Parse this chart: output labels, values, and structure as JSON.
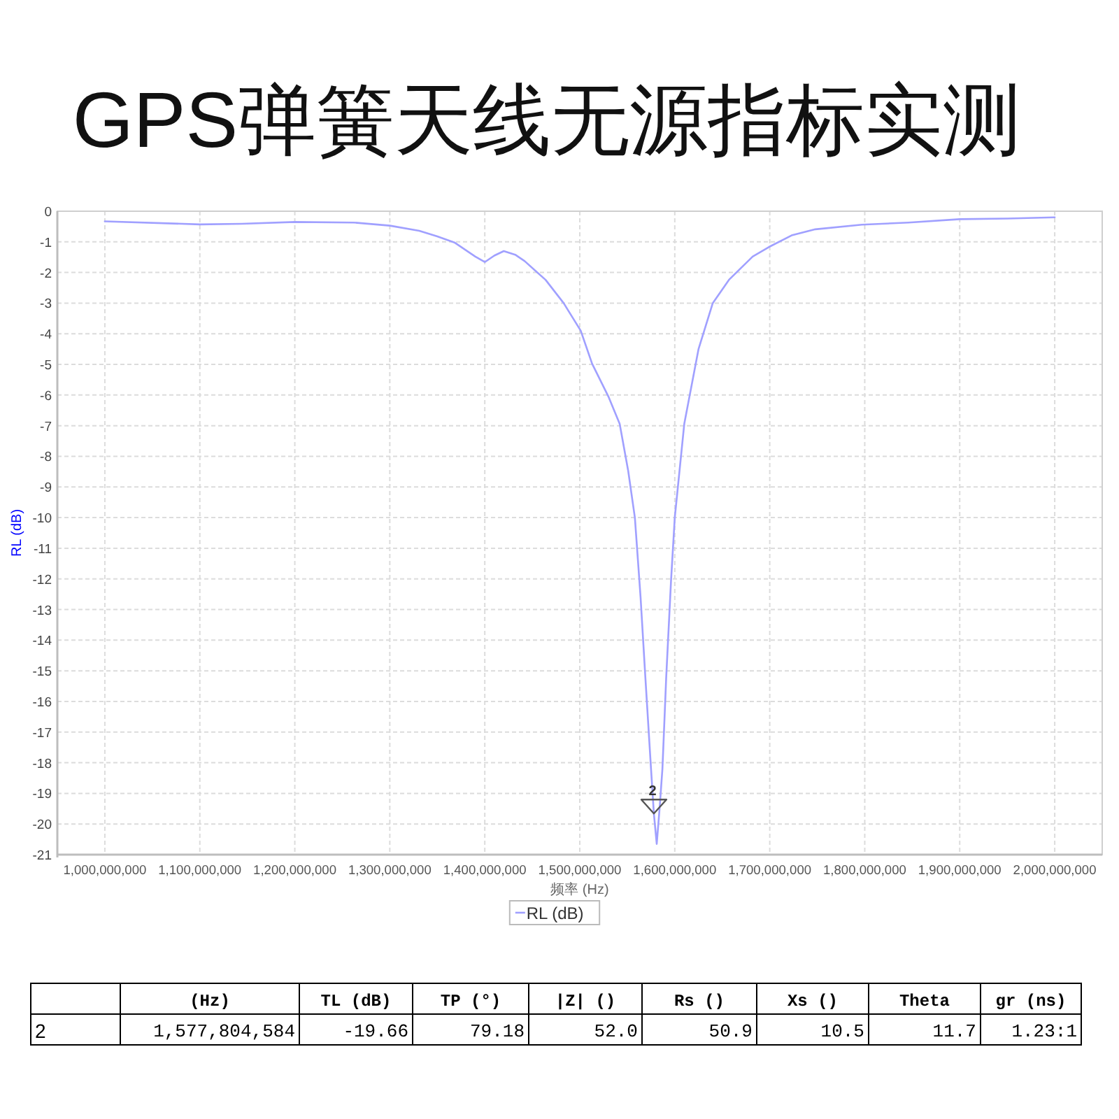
{
  "chart_data": {
    "type": "line",
    "title": "GPS弹簧天线无源指标实测",
    "xlabel": "频率 (Hz)",
    "ylabel": "RL (dB)",
    "xlim": [
      950000000,
      2050000000
    ],
    "ylim": [
      -21,
      0
    ],
    "xticks": [
      {
        "value": 1000000000,
        "label": "1,000,000,000"
      },
      {
        "value": 1100000000,
        "label": "1,100,000,000"
      },
      {
        "value": 1200000000,
        "label": "1,200,000,000"
      },
      {
        "value": 1300000000,
        "label": "1,300,000,000"
      },
      {
        "value": 1400000000,
        "label": "1,400,000,000"
      },
      {
        "value": 1500000000,
        "label": "1,500,000,000"
      },
      {
        "value": 1600000000,
        "label": "1,600,000,000"
      },
      {
        "value": 1700000000,
        "label": "1,700,000,000"
      },
      {
        "value": 1800000000,
        "label": "1,800,000,000"
      },
      {
        "value": 1900000000,
        "label": "1,900,000,000"
      },
      {
        "value": 2000000000,
        "label": "2,000,000,000"
      }
    ],
    "yticks": [
      0,
      -1,
      -2,
      -3,
      -4,
      -5,
      -6,
      -7,
      -8,
      -9,
      -10,
      -11,
      -12,
      -13,
      -14,
      -15,
      -16,
      -17,
      -18,
      -19,
      -20,
      -21
    ],
    "grid": true,
    "legend": "bottom",
    "x": [
      1000000000,
      1100000000,
      1144000000,
      1200000000,
      1262000000,
      1300000000,
      1331000000,
      1350000000,
      1368000000,
      1390000000,
      1400000000,
      1410000000,
      1420000000,
      1432000000,
      1442000000,
      1464000000,
      1483000000,
      1501000000,
      1513000000,
      1530000000,
      1542000000,
      1551000000,
      1558000000,
      1564000000,
      1569000000,
      1575000000,
      1578000000,
      1581000000,
      1584000000,
      1587000000,
      1591000000,
      1596000000,
      1600000000,
      1610000000,
      1625000000,
      1640000000,
      1657000000,
      1682000000,
      1699000000,
      1723000000,
      1748000000,
      1797000000,
      1846000000,
      1900000000,
      1950000000,
      2000000000
    ],
    "series": [
      {
        "name": "RL (dB)",
        "color": "#a0a0ff",
        "values": [
          -0.33,
          -0.43,
          -0.41,
          -0.35,
          -0.37,
          -0.47,
          -0.64,
          -0.82,
          -1.02,
          -1.48,
          -1.66,
          -1.45,
          -1.3,
          -1.42,
          -1.63,
          -2.24,
          -3.0,
          -3.9,
          -4.98,
          -6.04,
          -6.94,
          -8.48,
          -10.0,
          -12.6,
          -15.2,
          -18.2,
          -19.66,
          -20.65,
          -19.5,
          -18.2,
          -15.2,
          -12.1,
          -10.0,
          -6.94,
          -4.5,
          -3.0,
          -2.24,
          -1.48,
          -1.17,
          -0.79,
          -0.59,
          -0.44,
          -0.37,
          -0.26,
          -0.24,
          -0.2
        ]
      }
    ],
    "annotations": [
      {
        "text": "2",
        "y": -19.66
      },
      "(Hz)",
      "TL (dB)",
      "TP (°)",
      "|Z| ()",
      "Rs ()",
      "Xs ()",
      "Theta",
      "gr (ns)",
      "2",
      "1,577,804,584",
      "-19.66",
      "79.18",
      "52.0",
      "50.9",
      "10.5",
      "11.7",
      "1.23:1"
    ]
  }
}
